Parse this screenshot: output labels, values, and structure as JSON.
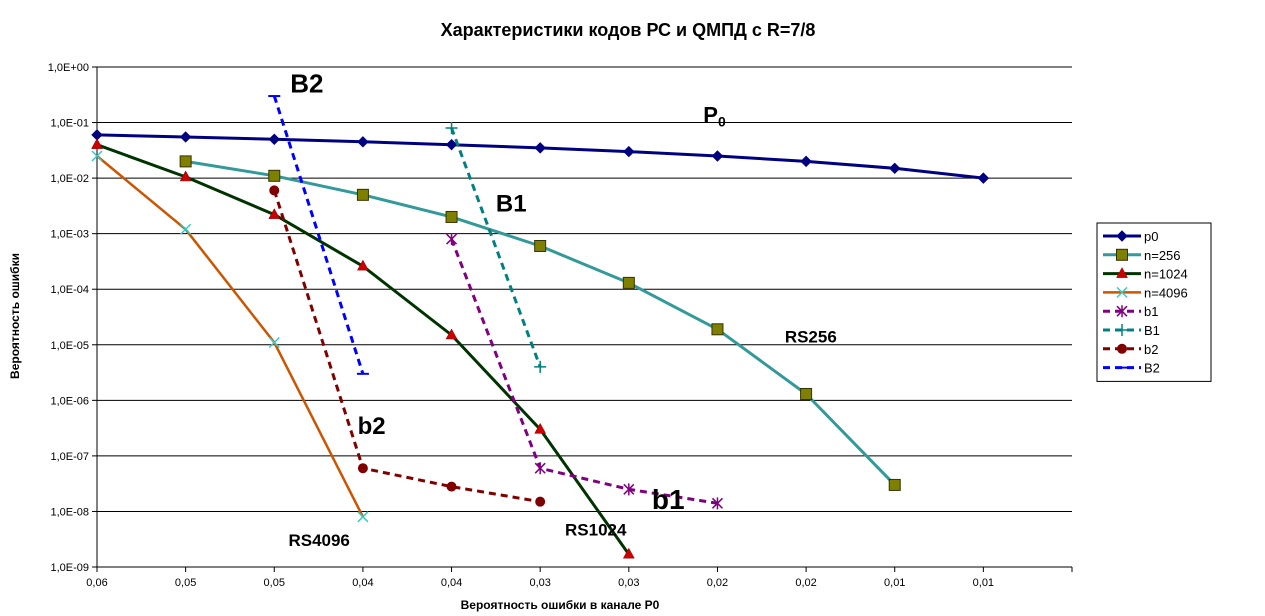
{
  "chart_data": {
    "type": "line",
    "title": "Характеристики кодов РС и QMПД с R=7/8",
    "xlabel": "Вероятность ошибки в канале  P0",
    "ylabel": "Вероятность ошибки",
    "y_scale": "log",
    "ylim": [
      1e-09,
      1
    ],
    "xlim": [
      0.06,
      0.0
    ],
    "x_reversed": true,
    "grid": "horizontal major",
    "legend_position": "right",
    "x_ticks": [
      {
        "value": 0.06,
        "label": "0,06"
      },
      {
        "value": 0.055,
        "label": "0,05"
      },
      {
        "value": 0.05,
        "label": "0,05"
      },
      {
        "value": 0.045,
        "label": "0,04"
      },
      {
        "value": 0.04,
        "label": "0,04"
      },
      {
        "value": 0.035,
        "label": "0,03"
      },
      {
        "value": 0.03,
        "label": "0,03"
      },
      {
        "value": 0.025,
        "label": "0,02"
      },
      {
        "value": 0.02,
        "label": "0,02"
      },
      {
        "value": 0.015,
        "label": "0,01"
      },
      {
        "value": 0.01,
        "label": "0,01"
      }
    ],
    "y_ticks": [
      {
        "value": 1,
        "label": "1,0E+00"
      },
      {
        "value": 0.1,
        "label": "1,0E-01"
      },
      {
        "value": 0.01,
        "label": "1,0E-02"
      },
      {
        "value": 0.001,
        "label": "1,0E-03"
      },
      {
        "value": 0.0001,
        "label": "1,0E-04"
      },
      {
        "value": 1e-05,
        "label": "1,0E-05"
      },
      {
        "value": 1e-06,
        "label": "1,0E-06"
      },
      {
        "value": 1e-07,
        "label": "1,0E-07"
      },
      {
        "value": 1e-08,
        "label": "1,0E-08"
      },
      {
        "value": 1e-09,
        "label": "1,0E-09"
      }
    ],
    "series": [
      {
        "name": "p0",
        "color": "#000080",
        "style": "solid",
        "width": 3,
        "marker": "diamond",
        "points": [
          [
            0.06,
            0.06
          ],
          [
            0.055,
            0.055
          ],
          [
            0.05,
            0.05
          ],
          [
            0.045,
            0.045
          ],
          [
            0.04,
            0.04
          ],
          [
            0.035,
            0.035
          ],
          [
            0.03,
            0.03
          ],
          [
            0.025,
            0.025
          ],
          [
            0.02,
            0.02
          ],
          [
            0.015,
            0.015
          ],
          [
            0.01,
            0.01
          ]
        ]
      },
      {
        "name": "n=256",
        "color": "#339999",
        "style": "solid",
        "width": 3,
        "marker": "square",
        "points": [
          [
            0.055,
            0.02
          ],
          [
            0.05,
            0.011
          ],
          [
            0.045,
            0.005
          ],
          [
            0.04,
            0.002
          ],
          [
            0.035,
            0.0006
          ],
          [
            0.03,
            0.00013
          ],
          [
            0.025,
            1.9e-05
          ],
          [
            0.02,
            1.3e-06
          ],
          [
            0.015,
            3e-08
          ]
        ]
      },
      {
        "name": "n=1024",
        "color": "#003300",
        "style": "solid",
        "width": 3,
        "marker": "triangle",
        "points": [
          [
            0.06,
            0.04
          ],
          [
            0.055,
            0.0105
          ],
          [
            0.05,
            0.0022
          ],
          [
            0.045,
            0.00026
          ],
          [
            0.04,
            1.5e-05
          ],
          [
            0.035,
            3e-07
          ],
          [
            0.03,
            1.7e-09
          ]
        ]
      },
      {
        "name": "n=4096",
        "color": "#CC5500",
        "style": "solid",
        "width": 2.5,
        "marker": "x",
        "points": [
          [
            0.06,
            0.025
          ],
          [
            0.055,
            0.0012
          ],
          [
            0.05,
            1.1e-05
          ],
          [
            0.045,
            8e-09
          ]
        ]
      },
      {
        "name": "b1",
        "color": "#800080",
        "style": "dashed",
        "width": 3,
        "marker": "asterisk",
        "points": [
          [
            0.04,
            0.0008
          ],
          [
            0.035,
            6e-08
          ],
          [
            0.03,
            2.5e-08
          ],
          [
            0.025,
            1.4e-08
          ]
        ]
      },
      {
        "name": "B1",
        "color": "#008080",
        "style": "dashed",
        "width": 3,
        "marker": "plus",
        "points": [
          [
            0.04,
            0.08
          ],
          [
            0.035,
            4e-06
          ]
        ]
      },
      {
        "name": "b2",
        "color": "#800000",
        "style": "dashed",
        "width": 3,
        "marker": "circle",
        "points": [
          [
            0.05,
            0.006
          ],
          [
            0.045,
            6e-08
          ],
          [
            0.04,
            2.8e-08
          ],
          [
            0.035,
            1.5e-08
          ]
        ]
      },
      {
        "name": "B2",
        "color": "#0000FF",
        "style": "dashed",
        "width": 3,
        "marker": "dash",
        "points": [
          [
            0.05,
            0.3
          ],
          [
            0.045,
            3e-06
          ]
        ]
      }
    ],
    "annotations": [
      {
        "text": "B2",
        "x": 0.0491,
        "y": 0.35,
        "size": 26
      },
      {
        "text": "P",
        "sub": "0",
        "x": 0.0258,
        "y": 0.1,
        "size": 22
      },
      {
        "text": "B1",
        "x": 0.0375,
        "y": 0.0025,
        "size": 24
      },
      {
        "text": "RS256",
        "x": 0.0212,
        "y": 1.1e-05,
        "size": 17
      },
      {
        "text": "b2",
        "x": 0.0453,
        "y": 2.5e-07,
        "size": 24
      },
      {
        "text": "b1",
        "x": 0.0287,
        "y": 1.1e-08,
        "size": 28
      },
      {
        "text": "RS4096",
        "x": 0.0492,
        "y": 2.4e-09,
        "size": 17
      },
      {
        "text": "RS1024",
        "x": 0.0336,
        "y": 3.7e-09,
        "size": 17
      }
    ]
  }
}
